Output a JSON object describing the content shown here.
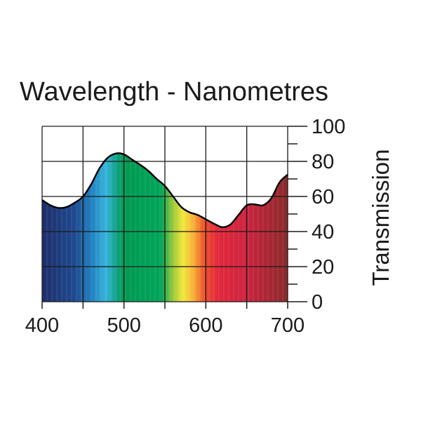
{
  "chart_data": {
    "type": "area",
    "title": "Wavelength - Nanometres",
    "xlabel": "",
    "ylabel": "Transmission",
    "xlim": [
      400,
      700
    ],
    "ylim": [
      0,
      100
    ],
    "x_ticks": [
      400,
      500,
      600,
      700
    ],
    "y_ticks": [
      0,
      20,
      40,
      60,
      80,
      100
    ],
    "grid": true,
    "series": [
      {
        "x": [
          400,
          410,
          420,
          430,
          440,
          450,
          460,
          470,
          480,
          490,
          500,
          510,
          520,
          530,
          540,
          550,
          560,
          570,
          580,
          590,
          600,
          610,
          620,
          630,
          640,
          650,
          660,
          670,
          680,
          690,
          700
        ],
        "y": [
          58,
          55,
          53.5,
          54,
          56.5,
          60,
          67,
          76,
          82,
          84.5,
          84,
          81,
          78,
          74.5,
          70,
          66,
          60,
          54,
          51,
          49.5,
          47,
          44.5,
          42.5,
          44,
          49.5,
          55,
          55.5,
          55,
          59,
          68,
          72.5
        ]
      }
    ],
    "spectrum_colors": [
      {
        "x": 400,
        "color": "#1e2e6c"
      },
      {
        "x": 440,
        "color": "#1f4a8f"
      },
      {
        "x": 460,
        "color": "#2080c0"
      },
      {
        "x": 478,
        "color": "#36b4dc"
      },
      {
        "x": 490,
        "color": "#14a38a"
      },
      {
        "x": 500,
        "color": "#009a50"
      },
      {
        "x": 545,
        "color": "#00a55a"
      },
      {
        "x": 560,
        "color": "#9cc83a"
      },
      {
        "x": 572,
        "color": "#f2e83c"
      },
      {
        "x": 585,
        "color": "#f8b038"
      },
      {
        "x": 598,
        "color": "#ee5028"
      },
      {
        "x": 615,
        "color": "#e2283c"
      },
      {
        "x": 650,
        "color": "#cc2440"
      },
      {
        "x": 700,
        "color": "#8a2a2a"
      }
    ],
    "grid_color": "#1a1a1a",
    "curve_color": "#000000"
  }
}
